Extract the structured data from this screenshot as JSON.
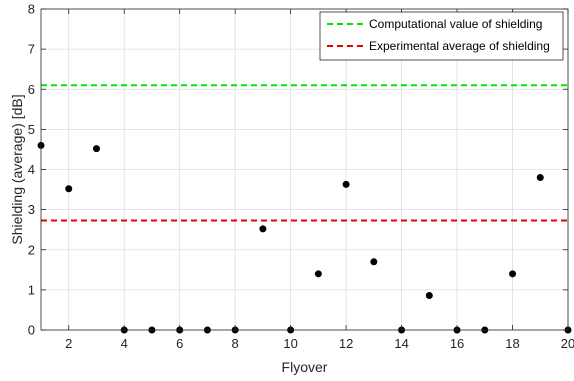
{
  "chart_data": {
    "type": "scatter",
    "title": "",
    "xlabel": "Flyover",
    "ylabel": "Shielding (average) [dB]",
    "xlim": [
      1,
      20
    ],
    "ylim": [
      0,
      8
    ],
    "xticks": [
      2,
      4,
      6,
      8,
      10,
      12,
      14,
      16,
      18,
      20
    ],
    "yticks": [
      0,
      1,
      2,
      3,
      4,
      5,
      6,
      7,
      8
    ],
    "grid": true,
    "legend_position": "top-right",
    "series": [
      {
        "type": "scatter",
        "color": "#000000",
        "points": [
          {
            "x": 1,
            "y": 4.6
          },
          {
            "x": 2,
            "y": 3.52
          },
          {
            "x": 3,
            "y": 4.52
          },
          {
            "x": 4,
            "y": 0.0
          },
          {
            "x": 5,
            "y": 0.0
          },
          {
            "x": 6,
            "y": 0.0
          },
          {
            "x": 7,
            "y": 0.0
          },
          {
            "x": 8,
            "y": 0.0
          },
          {
            "x": 9,
            "y": 2.52
          },
          {
            "x": 10,
            "y": 0.0
          },
          {
            "x": 11,
            "y": 1.4
          },
          {
            "x": 12,
            "y": 3.63
          },
          {
            "x": 13,
            "y": 1.7
          },
          {
            "x": 14,
            "y": 0.0
          },
          {
            "x": 15,
            "y": 0.86
          },
          {
            "x": 16,
            "y": 0.0
          },
          {
            "x": 17,
            "y": 0.0
          },
          {
            "x": 18,
            "y": 1.4
          },
          {
            "x": 19,
            "y": 3.8
          },
          {
            "x": 20,
            "y": 0.0
          }
        ]
      },
      {
        "type": "hline",
        "name": "Computational value of shielding",
        "y": 6.1,
        "color": "#00e600",
        "dash": "dashed"
      },
      {
        "type": "hline",
        "name": "Experimental average of shielding",
        "y": 2.73,
        "color": "#e60000",
        "dash": "dashed"
      }
    ]
  }
}
